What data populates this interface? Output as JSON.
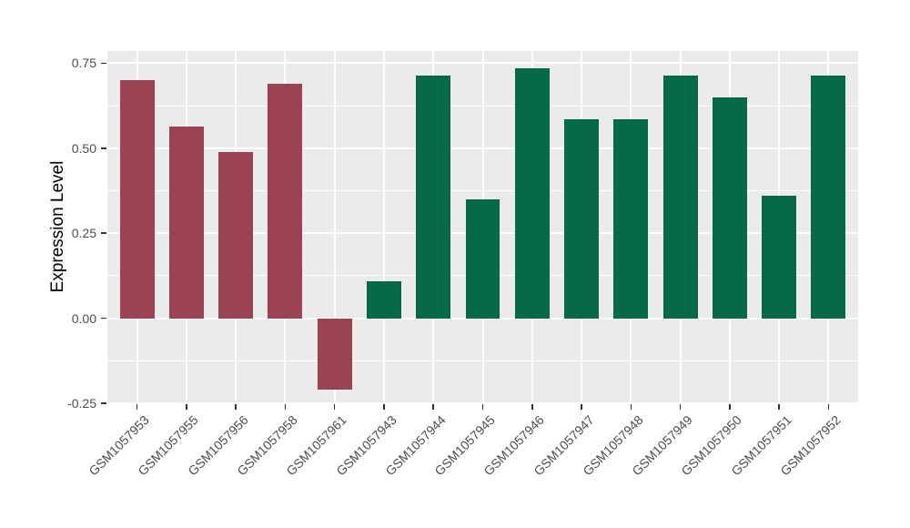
{
  "chart_data": {
    "type": "bar",
    "title": "",
    "xlabel": "",
    "ylabel": "Expression Level",
    "categories": [
      "GSM1057953",
      "GSM1057955",
      "GSM1057956",
      "GSM1057958",
      "GSM1057961",
      "GSM1057943",
      "GSM1057944",
      "GSM1057945",
      "GSM1057946",
      "GSM1057947",
      "GSM1057948",
      "GSM1057949",
      "GSM1057950",
      "GSM1057951",
      "GSM1057952"
    ],
    "values": [
      0.7,
      0.565,
      0.49,
      0.69,
      -0.21,
      0.11,
      0.715,
      0.35,
      0.735,
      0.585,
      0.585,
      0.715,
      0.65,
      0.36,
      0.715
    ],
    "bar_colors": [
      "#9A4352",
      "#9A4352",
      "#9A4352",
      "#9A4352",
      "#9A4352",
      "#046A4A",
      "#046A4A",
      "#046A4A",
      "#046A4A",
      "#046A4A",
      "#046A4A",
      "#046A4A",
      "#046A4A",
      "#046A4A",
      "#046A4A"
    ],
    "group_colors": {
      "maroon": "#9A4352",
      "green": "#046A4A"
    },
    "yticks": [
      0.75,
      0.5,
      0.25,
      0.0,
      -0.25
    ],
    "ytick_labels": [
      "0.75",
      "0.50",
      "0.25",
      "0.00",
      "-0.25"
    ],
    "minor_gridlines": [
      0.625,
      0.375,
      0.125,
      -0.125
    ],
    "ylim": [
      -0.25,
      0.786
    ],
    "grid": true,
    "panel_bg": "#EBEBEB",
    "grid_color": "#FFFFFF",
    "legend_position": "none"
  }
}
